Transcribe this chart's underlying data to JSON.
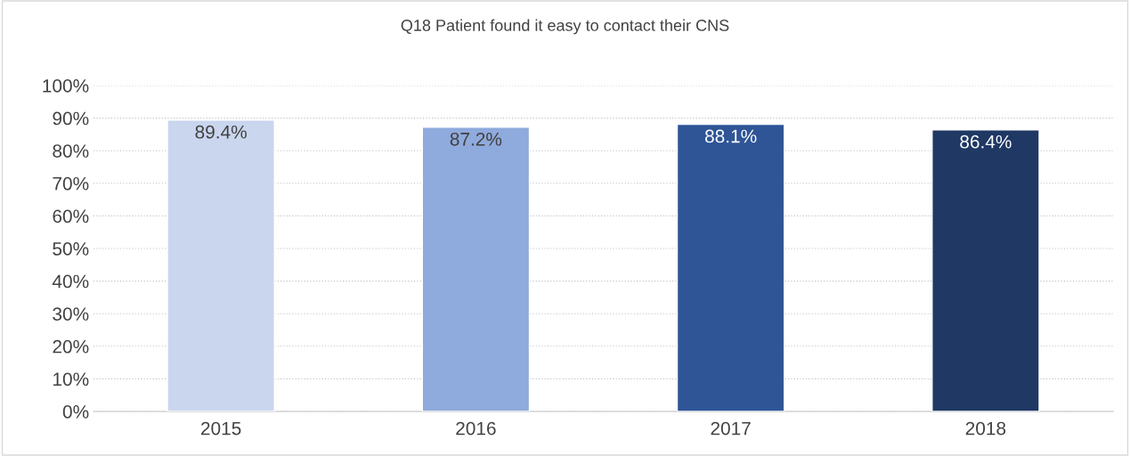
{
  "chart_data": {
    "type": "bar",
    "title": "Q18 Patient found it easy to contact their CNS",
    "categories": [
      "2015",
      "2016",
      "2017",
      "2018"
    ],
    "values": [
      89.4,
      87.2,
      88.1,
      86.4
    ],
    "colors": [
      "#cad6ee",
      "#8faadc",
      "#2f5597",
      "#1f3864"
    ],
    "value_labels": [
      "89.4%",
      "87.2%",
      "88.1%",
      "86.4%"
    ],
    "ylim": [
      0,
      100
    ],
    "yticks": [
      {
        "value": 0,
        "label": "0%"
      },
      {
        "value": 10,
        "label": "10%"
      },
      {
        "value": 20,
        "label": "20%"
      },
      {
        "value": 30,
        "label": "30%"
      },
      {
        "value": 40,
        "label": "40%"
      },
      {
        "value": 50,
        "label": "50%"
      },
      {
        "value": 60,
        "label": "60%"
      },
      {
        "value": 70,
        "label": "70%"
      },
      {
        "value": 80,
        "label": "80%"
      },
      {
        "value": 90,
        "label": "90%"
      },
      {
        "value": 100,
        "label": "100%"
      }
    ],
    "grid": "y"
  }
}
